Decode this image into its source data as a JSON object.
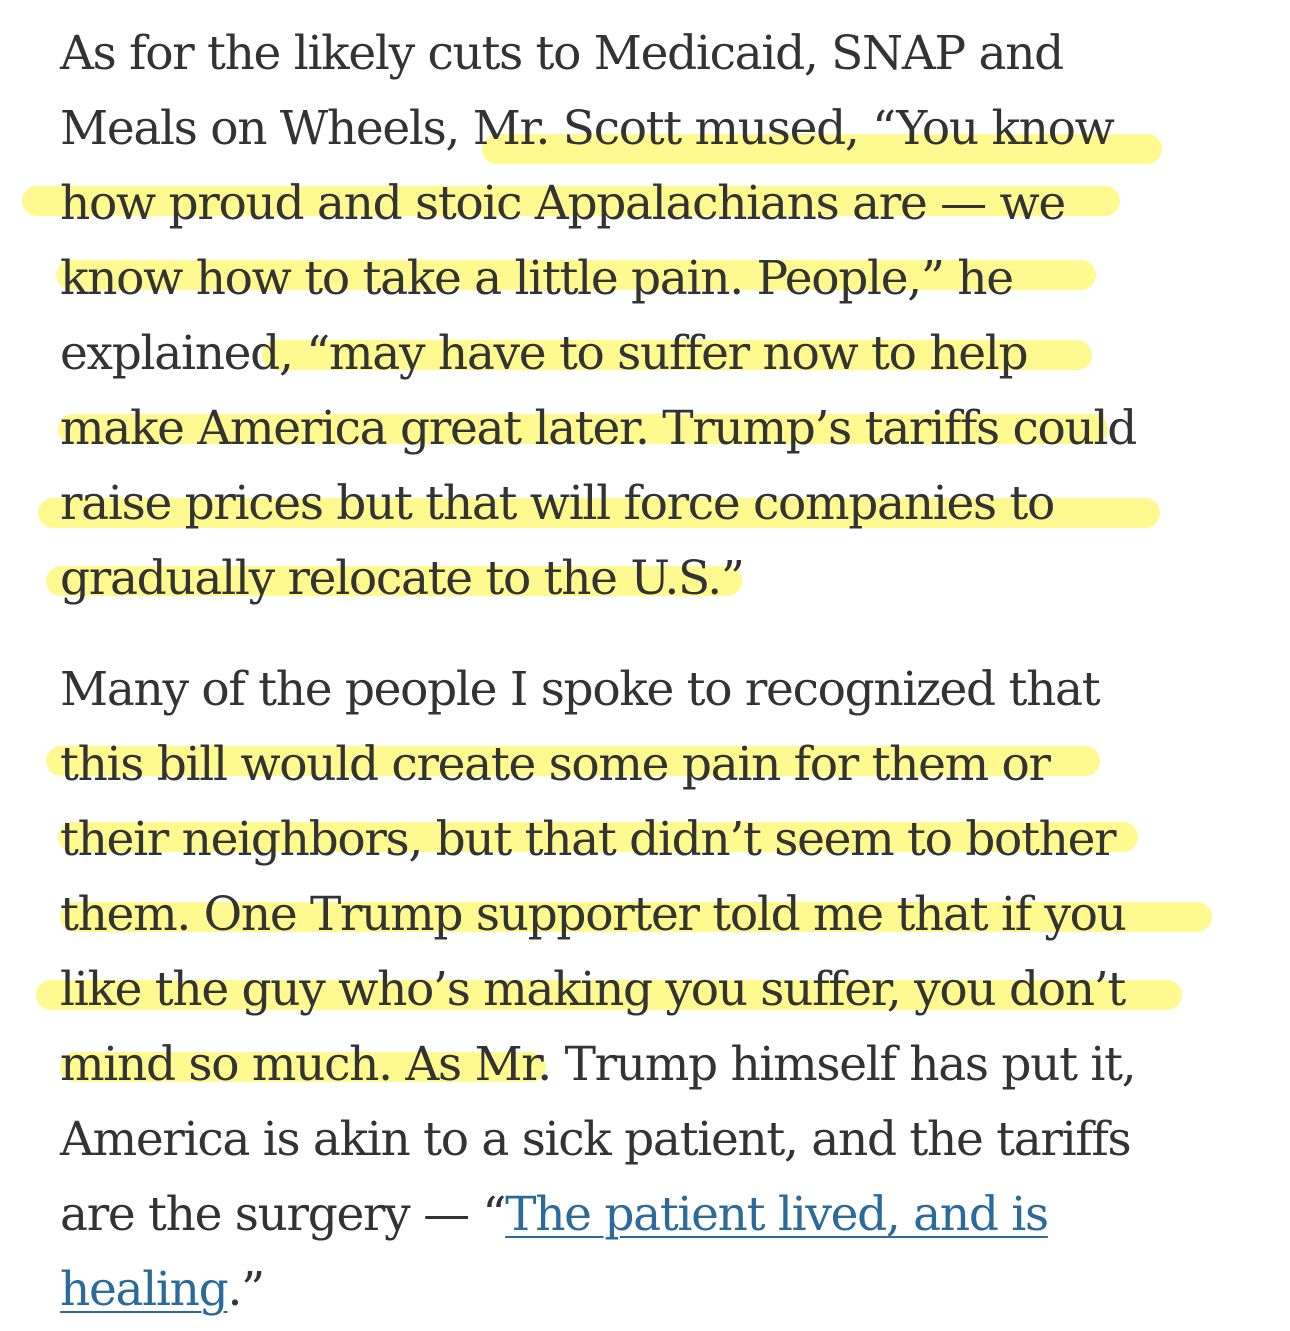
{
  "article": {
    "paragraphs": [
      {
        "lines": [
          "As for the likely cuts to Medicaid, SNAP and",
          "Meals on Wheels, Mr. Scott mused, “You know",
          "how proud and stoic Appalachians are — we",
          "know how to take a little pain. People,” he",
          "explained, “may have to suffer now to help",
          "make America great later. Trump’s tariffs could",
          "raise prices but that will force companies to",
          "gradually relocate to the U.S.”"
        ]
      },
      {
        "lines": [
          "Many of the people I spoke to recognized that",
          "this bill would create some pain for them or",
          "their neighbors, but that didn’t seem to bother",
          "them. One Trump supporter told me that if you",
          "like the guy who’s making you suffer, you don’t",
          "mind so much. As Mr. Trump himself has put it,",
          "America is akin to a sick patient, and the tariffs"
        ],
        "last_line": {
          "prefix": "are the surgery — “",
          "link_part1": "The patient lived, and is",
          "link_part2": "healing",
          "suffix": ".”"
        }
      }
    ]
  },
  "colors": {
    "text": "#333333",
    "link": "#2b6a9b",
    "highlight": "#fff770"
  }
}
